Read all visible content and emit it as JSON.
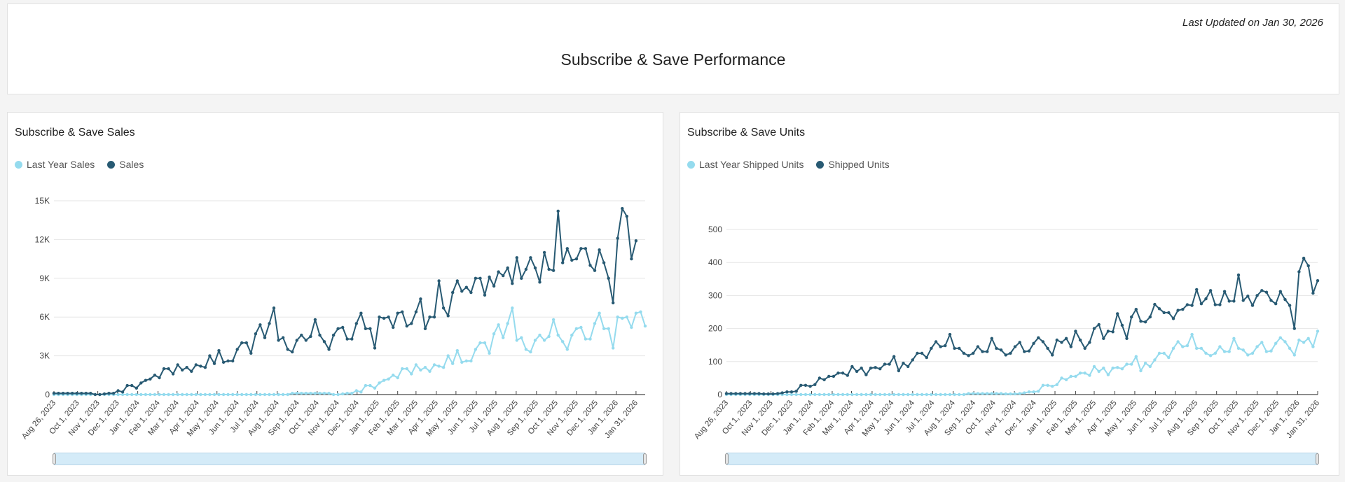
{
  "header": {
    "title": "Subscribe & Save Performance",
    "last_updated": "Last Updated on Jan 30, 2026"
  },
  "colors": {
    "last_year": "#95dbee",
    "current": "#285a73"
  },
  "chart_data": [
    {
      "type": "line",
      "title": "Subscribe & Save Sales",
      "x_start": "2023-08-26",
      "x_step_days": 7,
      "x_tick_labels": [
        "Aug 26, 2023",
        "Oct 1, 2023",
        "Nov 1, 2023",
        "Dec 1, 2023",
        "Jan 1, 2024",
        "Feb 1, 2024",
        "Mar 1, 2024",
        "Apr 1, 2024",
        "May 1, 2024",
        "Jun 1, 2024",
        "Jul 1, 2024",
        "Aug 1, 2024",
        "Sep 1, 2024",
        "Oct 1, 2024",
        "Nov 1, 2024",
        "Dec 1, 2024",
        "Jan 1, 2025",
        "Feb 1, 2025",
        "Mar 1, 2025",
        "Apr 1, 2025",
        "May 1, 2025",
        "Jun 1, 2025",
        "Jul 1, 2025",
        "Aug 1, 2025",
        "Sep 1, 2025",
        "Oct 1, 2025",
        "Nov 1, 2025",
        "Dec 1, 2025",
        "Jan 1, 2026",
        "Jan 31, 2026"
      ],
      "x_tick_dates": [
        "2023-08-26",
        "2023-10-01",
        "2023-11-01",
        "2023-12-01",
        "2024-01-01",
        "2024-02-01",
        "2024-03-01",
        "2024-04-01",
        "2024-05-01",
        "2024-06-01",
        "2024-07-01",
        "2024-08-01",
        "2024-09-01",
        "2024-10-01",
        "2024-11-01",
        "2024-12-01",
        "2025-01-01",
        "2025-02-01",
        "2025-03-01",
        "2025-04-01",
        "2025-05-01",
        "2025-06-01",
        "2025-07-01",
        "2025-08-01",
        "2025-09-01",
        "2025-10-01",
        "2025-11-01",
        "2025-12-01",
        "2026-01-01",
        "2026-01-31"
      ],
      "y_ticks": [
        0,
        3000,
        6000,
        9000,
        12000,
        15000
      ],
      "y_tick_labels": [
        "0",
        "3K",
        "6K",
        "9K",
        "12K",
        "15K"
      ],
      "ylim": [
        0,
        15000
      ],
      "grid": true,
      "legend_placement": "top-left",
      "series": [
        {
          "name": "Last Year Sales",
          "color": "#95dbee",
          "values": [
            0,
            0,
            0,
            0,
            0,
            0,
            0,
            0,
            0,
            0,
            0,
            0,
            0,
            0,
            0,
            0,
            0,
            0,
            0,
            0,
            0,
            0,
            0,
            0,
            0,
            0,
            0,
            0,
            0,
            0,
            0,
            0,
            0,
            0,
            0,
            0,
            0,
            0,
            0,
            0,
            0,
            0,
            0,
            0,
            0,
            0,
            0,
            0,
            0,
            0,
            0,
            0,
            100,
            100,
            100,
            100,
            100,
            100,
            100,
            100,
            100,
            0,
            0,
            50,
            100,
            100,
            300,
            200,
            700,
            700,
            500,
            900,
            1100,
            1200,
            1500,
            1300,
            2000,
            2000,
            1600,
            2300,
            1900,
            2100,
            1800,
            2300,
            2200,
            2100,
            3000,
            2400,
            3400,
            2500,
            2600,
            2600,
            3500,
            4000,
            4000,
            3200,
            4700,
            5400,
            4400,
            5500,
            6700,
            4200,
            4400,
            3500,
            3300,
            4200,
            4600,
            4200,
            4500,
            5800,
            4600,
            4100,
            3500,
            4600,
            5100,
            5200,
            4300,
            4300,
            5500,
            6300,
            5100,
            5100,
            3600,
            6000,
            5900,
            6000,
            5200,
            6300,
            6400,
            5300
          ]
        },
        {
          "name": "Sales",
          "color": "#285a73",
          "values": [
            100,
            100,
            100,
            100,
            100,
            100,
            100,
            100,
            100,
            0,
            0,
            50,
            100,
            100,
            300,
            200,
            700,
            700,
            500,
            900,
            1100,
            1200,
            1500,
            1300,
            2000,
            2000,
            1600,
            2300,
            1900,
            2100,
            1800,
            2300,
            2200,
            2100,
            3000,
            2400,
            3400,
            2500,
            2600,
            2600,
            3500,
            4000,
            4000,
            3200,
            4700,
            5400,
            4400,
            5500,
            6700,
            4200,
            4400,
            3500,
            3300,
            4200,
            4600,
            4200,
            4500,
            5800,
            4600,
            4100,
            3500,
            4600,
            5100,
            5200,
            4300,
            4300,
            5500,
            6300,
            5100,
            5100,
            3600,
            6000,
            5900,
            6000,
            5200,
            6300,
            6400,
            5300,
            5500,
            6400,
            7400,
            5100,
            6000,
            6000,
            8800,
            6700,
            6100,
            7900,
            8800,
            8000,
            8300,
            7900,
            9000,
            9000,
            7700,
            9100,
            8400,
            9500,
            9200,
            9800,
            8600,
            10600,
            9000,
            9700,
            10600,
            9800,
            8700,
            11000,
            9700,
            9600,
            14200,
            10200,
            11300,
            10400,
            10500,
            11300,
            11300,
            10000,
            9600,
            11200,
            10200,
            9000,
            7100,
            12100,
            14400,
            13800,
            10500,
            11900
          ]
        }
      ]
    },
    {
      "type": "line",
      "title": "Subscribe & Save Units",
      "x_start": "2023-08-26",
      "x_step_days": 7,
      "x_tick_labels": [
        "Aug 26, 2023",
        "Oct 1, 2023",
        "Nov 1, 2023",
        "Dec 1, 2023",
        "Jan 1, 2024",
        "Feb 1, 2024",
        "Mar 1, 2024",
        "Apr 1, 2024",
        "May 1, 2024",
        "Jun 1, 2024",
        "Jul 1, 2024",
        "Aug 1, 2024",
        "Sep 1, 2024",
        "Oct 1, 2024",
        "Nov 1, 2024",
        "Dec 1, 2024",
        "Jan 1, 2025",
        "Feb 1, 2025",
        "Mar 1, 2025",
        "Apr 1, 2025",
        "May 1, 2025",
        "Jun 1, 2025",
        "Jul 1, 2025",
        "Aug 1, 2025",
        "Sep 1, 2025",
        "Oct 1, 2025",
        "Nov 1, 2025",
        "Dec 1, 2025",
        "Jan 1, 2026",
        "Jan 31, 2026"
      ],
      "x_tick_dates": [
        "2023-08-26",
        "2023-10-01",
        "2023-11-01",
        "2023-12-01",
        "2024-01-01",
        "2024-02-01",
        "2024-03-01",
        "2024-04-01",
        "2024-05-01",
        "2024-06-01",
        "2024-07-01",
        "2024-08-01",
        "2024-09-01",
        "2024-10-01",
        "2024-11-01",
        "2024-12-01",
        "2025-01-01",
        "2025-02-01",
        "2025-03-01",
        "2025-04-01",
        "2025-05-01",
        "2025-06-01",
        "2025-07-01",
        "2025-08-01",
        "2025-09-01",
        "2025-10-01",
        "2025-11-01",
        "2025-12-01",
        "2026-01-01",
        "2026-01-31"
      ],
      "y_ticks": [
        0,
        100,
        200,
        300,
        400,
        500
      ],
      "y_tick_labels": [
        "0",
        "100",
        "200",
        "300",
        "400",
        "500"
      ],
      "ylim": [
        0,
        500
      ],
      "grid": true,
      "legend_placement": "top-left",
      "series": [
        {
          "name": "Last Year Shipped Units",
          "color": "#95dbee",
          "values": [
            0,
            0,
            0,
            0,
            0,
            0,
            0,
            0,
            0,
            0,
            0,
            0,
            0,
            0,
            0,
            0,
            0,
            0,
            0,
            0,
            0,
            0,
            0,
            0,
            0,
            0,
            0,
            0,
            0,
            0,
            0,
            0,
            0,
            0,
            0,
            0,
            0,
            0,
            0,
            0,
            0,
            0,
            0,
            0,
            0,
            0,
            0,
            0,
            0,
            0,
            0,
            0,
            3,
            3,
            3,
            3,
            3,
            3,
            3,
            3,
            2,
            2,
            2,
            3,
            5,
            8,
            8,
            10,
            28,
            28,
            25,
            30,
            50,
            45,
            55,
            55,
            65,
            65,
            58,
            85,
            70,
            80,
            60,
            80,
            82,
            78,
            92,
            92,
            115,
            72,
            95,
            85,
            105,
            125,
            125,
            112,
            140,
            160,
            145,
            148,
            182,
            140,
            140,
            125,
            118,
            125,
            145,
            130,
            130,
            170,
            140,
            135,
            120,
            125,
            145,
            158,
            130,
            132,
            155,
            172,
            160,
            140,
            120,
            165,
            158,
            170,
            145,
            192
          ]
        },
        {
          "name": "Shipped Units",
          "color": "#285a73",
          "values": [
            3,
            3,
            3,
            3,
            3,
            3,
            3,
            3,
            2,
            2,
            2,
            3,
            5,
            8,
            8,
            10,
            28,
            28,
            25,
            30,
            50,
            45,
            55,
            55,
            65,
            65,
            58,
            85,
            70,
            80,
            60,
            80,
            82,
            78,
            92,
            92,
            115,
            72,
            95,
            85,
            105,
            125,
            125,
            112,
            140,
            160,
            145,
            148,
            182,
            140,
            140,
            125,
            118,
            125,
            145,
            130,
            130,
            170,
            140,
            135,
            120,
            125,
            145,
            158,
            130,
            132,
            155,
            172,
            160,
            140,
            120,
            165,
            158,
            170,
            145,
            192,
            165,
            140,
            158,
            200,
            212,
            170,
            192,
            190,
            245,
            210,
            170,
            235,
            258,
            222,
            220,
            235,
            273,
            260,
            248,
            248,
            230,
            255,
            258,
            272,
            270,
            318,
            275,
            290,
            315,
            272,
            272,
            312,
            283,
            283,
            362,
            285,
            298,
            270,
            300,
            315,
            310,
            285,
            275,
            312,
            288,
            270,
            200,
            372,
            413,
            390,
            307,
            345
          ]
        }
      ]
    }
  ]
}
